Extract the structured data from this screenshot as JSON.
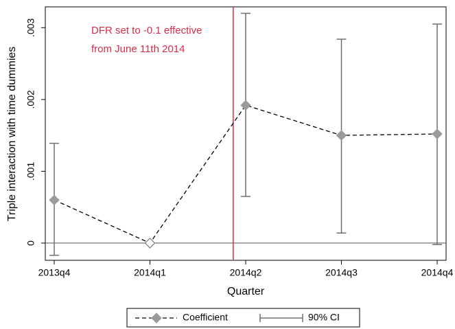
{
  "chart_data": {
    "type": "coefplot",
    "x_label": "Quarter",
    "y_label": "Triple interaction with time dummies",
    "categories": [
      "2013q4",
      "2014q1",
      "2014q2",
      "2014q3",
      "2014q4"
    ],
    "series": [
      {
        "name": "Coefficient",
        "color": "#9a9a9a",
        "values": [
          0.0006,
          0,
          0.00192,
          0.0015,
          0.00152
        ],
        "hollow": [
          false,
          true,
          false,
          false,
          false
        ]
      },
      {
        "name": "90% CI",
        "color": "#6e6e6e",
        "lower": [
          -0.00017,
          null,
          0.00065,
          0.00014,
          -2e-05
        ],
        "upper": [
          0.00139,
          null,
          0.0032,
          0.00284,
          0.00305
        ]
      }
    ],
    "ylim": [
      -0.00024,
      0.00329
    ],
    "yticks": [
      0,
      {
        "value": 0.001,
        "label": ".001"
      },
      {
        "value": 0.002,
        "label": ".002"
      },
      {
        "value": 0.003,
        "label": ".003"
      }
    ],
    "zero_line": 0,
    "vline": {
      "x": 1.87,
      "color": "#d62d4a"
    },
    "annotation": [
      "DFR set to -0.1 effective",
      "from June 11th 2014"
    ]
  }
}
